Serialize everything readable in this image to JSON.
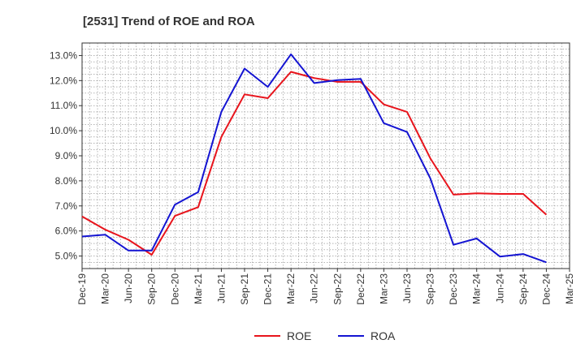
{
  "chart_data": {
    "type": "line",
    "title": "[2531]  Trend of ROE and ROA",
    "xlabel": "",
    "ylabel": "",
    "x": [
      "Dec-19",
      "Mar-20",
      "Jun-20",
      "Sep-20",
      "Dec-20",
      "Mar-21",
      "Jun-21",
      "Sep-21",
      "Dec-21",
      "Mar-22",
      "Jun-22",
      "Sep-22",
      "Dec-22",
      "Mar-23",
      "Jun-23",
      "Sep-23",
      "Dec-23",
      "Mar-24",
      "Jun-24",
      "Sep-24",
      "Dec-24"
    ],
    "x_tick_labels": [
      "Dec-19",
      "Mar-20",
      "Jun-20",
      "Sep-20",
      "Dec-20",
      "Mar-21",
      "Jun-21",
      "Sep-21",
      "Dec-21",
      "Mar-22",
      "Jun-22",
      "Sep-22",
      "Dec-22",
      "Mar-23",
      "Jun-23",
      "Sep-23",
      "Dec-23",
      "Mar-24",
      "Jun-24",
      "Sep-24",
      "Dec-24",
      "Mar-25"
    ],
    "y_tick_labels": [
      "5.0%",
      "6.0%",
      "7.0%",
      "8.0%",
      "9.0%",
      "10.0%",
      "11.0%",
      "12.0%",
      "13.0%"
    ],
    "ylim": [
      4.5,
      13.5
    ],
    "grid": true,
    "legend_position": "bottom",
    "series": [
      {
        "name": "ROE",
        "color": "#e8141c",
        "values": [
          6.58,
          6.05,
          5.65,
          5.05,
          6.6,
          6.95,
          9.75,
          11.45,
          11.3,
          12.35,
          12.1,
          11.95,
          11.95,
          11.05,
          10.75,
          8.9,
          7.45,
          7.5,
          7.48,
          7.48,
          6.65
        ]
      },
      {
        "name": "ROA",
        "color": "#1414d2",
        "values": [
          5.78,
          5.85,
          5.22,
          5.22,
          7.05,
          7.55,
          10.75,
          12.48,
          11.75,
          13.05,
          11.9,
          12.02,
          12.07,
          10.3,
          9.95,
          8.1,
          5.45,
          5.7,
          4.98,
          5.08,
          4.75
        ]
      }
    ]
  }
}
